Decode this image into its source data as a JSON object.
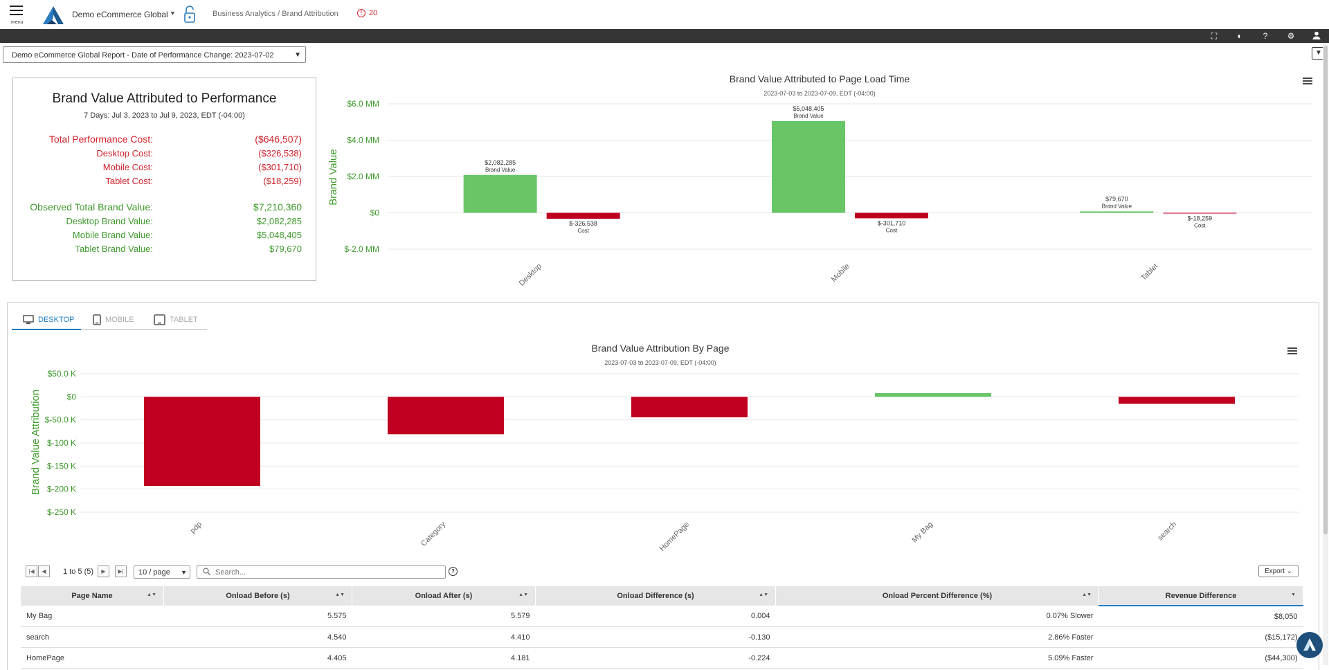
{
  "header": {
    "menu_label": "menu",
    "org_name": "Demo eCommerce Global",
    "breadcrumb": "Business Analytics / Brand Attribution",
    "alert_count": "20"
  },
  "toolbar": {
    "icons": [
      "fullscreen-icon",
      "contrast-icon",
      "help-icon",
      "gear-icon",
      "user-icon"
    ]
  },
  "report_selector": {
    "value": "Demo eCommerce Global Report - Date of Performance Change: 2023-07-02"
  },
  "summary": {
    "title": "Brand Value Attributed to Performance",
    "subtitle": "7 Days: Jul 3, 2023 to Jul 9, 2023, EDT (-04:00)",
    "rows": [
      {
        "label": "Total Performance Cost:",
        "value": "($646,507)"
      },
      {
        "label": "Desktop Cost:",
        "value": "($326,538)"
      },
      {
        "label": "Mobile Cost:",
        "value": "($301,710)"
      },
      {
        "label": "Tablet Cost:",
        "value": "($18,259)"
      },
      {
        "label": "Observed Total Brand Value:",
        "value": "$7,210,360"
      },
      {
        "label": "Desktop Brand Value:",
        "value": "$2,082,285"
      },
      {
        "label": "Mobile Brand Value:",
        "value": "$5,048,405"
      },
      {
        "label": "Tablet Brand Value:",
        "value": "$79,670"
      }
    ],
    "colors": {
      "cost": "#d0212a",
      "value": "#3f9a2d"
    }
  },
  "chart_data": [
    {
      "type": "bar",
      "title": "Brand Value Attributed to Page Load Time",
      "subtitle": "2023-07-03 to 2023-07-09, EDT (-04:00)",
      "ylabel": "Brand Value",
      "xlabel": "",
      "categories": [
        "Desktop",
        "Mobile",
        "Tablet"
      ],
      "yticks": [
        "$6.0 MM",
        "$4.0 MM",
        "$2.0 MM",
        "$0",
        "$-2.0 MM"
      ],
      "ylim": [
        -2000000,
        6000000
      ],
      "series": [
        {
          "name": "Brand Value",
          "values": [
            2082285,
            5048405,
            79670
          ],
          "labels": [
            "$2,082,285",
            "$5,048,405",
            "$79,670"
          ],
          "color": "#68c666"
        },
        {
          "name": "Cost",
          "values": [
            -326538,
            -301710,
            -18259
          ],
          "labels": [
            "$-326,538",
            "$-301,710",
            "$-18,259"
          ],
          "color": "#c00020"
        }
      ]
    },
    {
      "type": "bar",
      "title": "Brand Value Attribution By Page",
      "subtitle": "2023-07-03 to 2023-07-09, EDT (-04:00)",
      "ylabel": "Brand Value Attribution",
      "xlabel": "",
      "categories": [
        "pdp",
        "Category",
        "HomePage",
        "My Bag",
        "search"
      ],
      "yticks": [
        "$50.0 K",
        "$0",
        "$-50.0 K",
        "$-100 K",
        "$-150 K",
        "$-200 K",
        "$-250 K"
      ],
      "ylim": [
        -250000,
        50000
      ],
      "values": [
        -193000,
        -81000,
        -44300,
        8050,
        -15172
      ],
      "colors": {
        "positive": "#68c666",
        "negative": "#c00020"
      }
    }
  ],
  "device_tabs": [
    {
      "label": "DESKTOP",
      "active": true
    },
    {
      "label": "MOBILE",
      "active": false
    },
    {
      "label": "TABLET",
      "active": false
    }
  ],
  "table": {
    "pagination": {
      "info": "1 to 5 (5)",
      "per_page": "10 / page"
    },
    "search_placeholder": "Search...",
    "export_label": "Export",
    "columns": [
      "Page Name",
      "Onload Before (s)",
      "Onload After (s)",
      "Onload Difference (s)",
      "Onload Percent Difference (%)",
      "Revenue Difference"
    ],
    "rows": [
      {
        "page": "My Bag",
        "before": "5.575",
        "after": "5.579",
        "diff": "0.004",
        "pct": "0.07% Slower",
        "revenue": "$8,050",
        "negative": false
      },
      {
        "page": "search",
        "before": "4.540",
        "after": "4.410",
        "diff": "-0.130",
        "pct": "2.86% Faster",
        "revenue": "($15,172)",
        "negative": true
      },
      {
        "page": "HomePage",
        "before": "4.405",
        "after": "4.181",
        "diff": "-0.224",
        "pct": "5.09% Faster",
        "revenue": "($44,300)",
        "negative": true
      }
    ]
  }
}
